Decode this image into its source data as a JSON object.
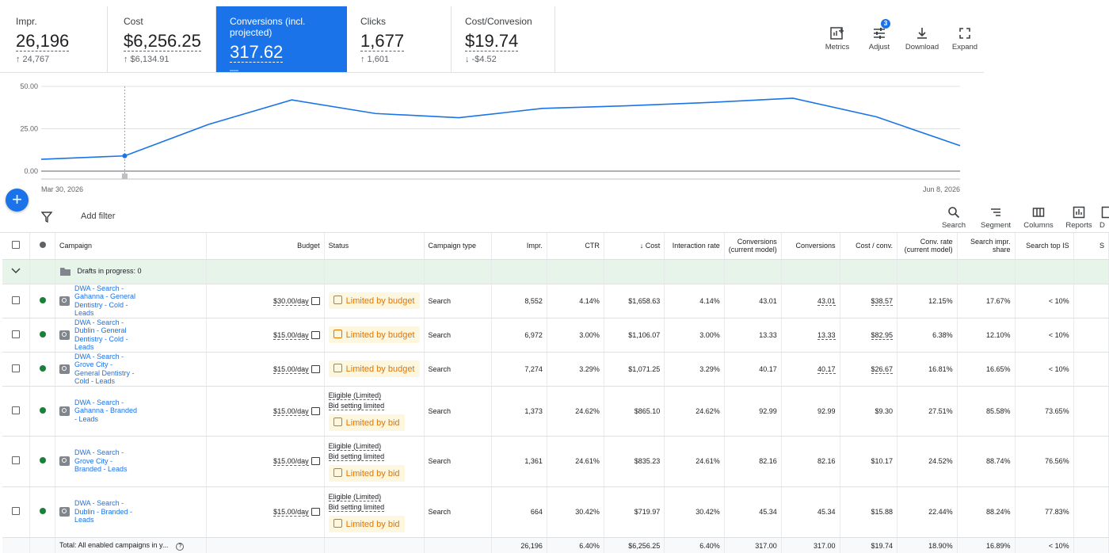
{
  "metrics": [
    {
      "label": "Impr.",
      "value": "26,196",
      "delta": "↑ 24,767"
    },
    {
      "label": "Cost",
      "value": "$6,256.25",
      "delta": "↑ $6,134.91"
    },
    {
      "label": "Conversions (incl. projected)",
      "value": "317.62",
      "delta": "—"
    },
    {
      "label": "Clicks",
      "value": "1,677",
      "delta": "↑ 1,601"
    },
    {
      "label": "Cost/Convesion",
      "value": "$19.74",
      "delta": "↓ -$4.52"
    }
  ],
  "toolbar": {
    "metrics": "Metrics",
    "adjust": "Adjust",
    "adjust_badge": "3",
    "download": "Download",
    "expand": "Expand"
  },
  "chart_data": {
    "type": "line",
    "y_ticks": [
      "50.00",
      "25.00",
      "0.00"
    ],
    "ylim": [
      0,
      50
    ],
    "x_start_label": "Mar 30, 2026",
    "x_end_label": "Jun 8, 2026",
    "series": [
      {
        "values": [
          7,
          9,
          27.5,
          42,
          34,
          31.5,
          37,
          38.5,
          40.5,
          43,
          32,
          15
        ],
        "color": "#1a73e8"
      }
    ],
    "highlight_index": 1
  },
  "filterbar": {
    "add_filter": "Add filter",
    "search": "Search",
    "segment": "Segment",
    "columns": "Columns",
    "reports": "Reports",
    "cut_off": "D"
  },
  "table": {
    "headers": {
      "campaign": "Campaign",
      "budget": "Budget",
      "status": "Status",
      "type": "Campaign type",
      "impr": "Impr.",
      "ctr": "CTR",
      "cost": "↓ Cost",
      "interaction_rate": "Interaction rate",
      "conv_current_1": "Conversions",
      "conv_current_2": "(current model)",
      "conversions": "Conversions",
      "cost_conv": "Cost / conv.",
      "conv_rate_1": "Conv. rate",
      "conv_rate_2": "(current model)",
      "sis_1": "Search impr.",
      "sis_2": "share",
      "top_is": "Search top IS",
      "cut": "S"
    },
    "drafts": "Drafts in progress: 0",
    "rows": [
      {
        "name": "DWA - Search - Gahanna - General Dentistry - Cold - Leads",
        "budget": "$30.00/day",
        "eligible": "",
        "reason": "",
        "status": "Limited by budget",
        "type": "Search",
        "impr": "8,552",
        "ctr": "4.14%",
        "cost": "$1,658.63",
        "ir": "4.14%",
        "conv_cm": "43.01",
        "conv": "43.01",
        "cpc": "$38.57",
        "cr": "12.15%",
        "sis": "17.67%",
        "tis": "< 10%"
      },
      {
        "name": "DWA - Search - Dublin - General Dentistry - Cold - Leads",
        "budget": "$15.00/day",
        "eligible": "",
        "reason": "",
        "status": "Limited by budget",
        "type": "Search",
        "impr": "6,972",
        "ctr": "3.00%",
        "cost": "$1,106.07",
        "ir": "3.00%",
        "conv_cm": "13.33",
        "conv": "13.33",
        "cpc": "$82.95",
        "cr": "6.38%",
        "sis": "12.10%",
        "tis": "< 10%"
      },
      {
        "name": "DWA - Search - Grove City - General Dentistry - Cold - Leads",
        "budget": "$15.00/day",
        "eligible": "",
        "reason": "",
        "status": "Limited by budget",
        "type": "Search",
        "impr": "7,274",
        "ctr": "3.29%",
        "cost": "$1,071.25",
        "ir": "3.29%",
        "conv_cm": "40.17",
        "conv": "40.17",
        "cpc": "$26.67",
        "cr": "16.81%",
        "sis": "16.65%",
        "tis": "< 10%"
      },
      {
        "name": "DWA - Search - Gahanna - Branded - Leads",
        "budget": "$15.00/day",
        "eligible": "Eligible (Limited)",
        "reason": "Bid setting limited",
        "status": "Limited by bid",
        "type": "Search",
        "impr": "1,373",
        "ctr": "24.62%",
        "cost": "$865.10",
        "ir": "24.62%",
        "conv_cm": "92.99",
        "conv": "92.99",
        "cpc": "$9.30",
        "cr": "27.51%",
        "sis": "85.58%",
        "tis": "73.65%"
      },
      {
        "name": "DWA - Search - Grove City - Branded - Leads",
        "budget": "$15.00/day",
        "eligible": "Eligible (Limited)",
        "reason": "Bid setting limited",
        "status": "Limited by bid",
        "type": "Search",
        "impr": "1,361",
        "ctr": "24.61%",
        "cost": "$835.23",
        "ir": "24.61%",
        "conv_cm": "82.16",
        "conv": "82.16",
        "cpc": "$10.17",
        "cr": "24.52%",
        "sis": "88.74%",
        "tis": "76.56%"
      },
      {
        "name": "DWA - Search - Dublin - Branded - Leads",
        "budget": "$15.00/day",
        "eligible": "Eligible (Limited)",
        "reason": "Bid setting limited",
        "status": "Limited by bid",
        "type": "Search",
        "impr": "664",
        "ctr": "30.42%",
        "cost": "$719.97",
        "ir": "30.42%",
        "conv_cm": "45.34",
        "conv": "45.34",
        "cpc": "$15.88",
        "cr": "22.44%",
        "sis": "88.24%",
        "tis": "77.83%"
      }
    ],
    "total": {
      "label": "Total: All enabled campaigns in y...",
      "impr": "26,196",
      "ctr": "6.40%",
      "cost": "$6,256.25",
      "ir": "6.40%",
      "conv_cm": "317.00",
      "conv": "317.00",
      "cpc": "$19.74",
      "cr": "18.90%",
      "sis": "16.89%",
      "tis": "< 10%"
    }
  }
}
